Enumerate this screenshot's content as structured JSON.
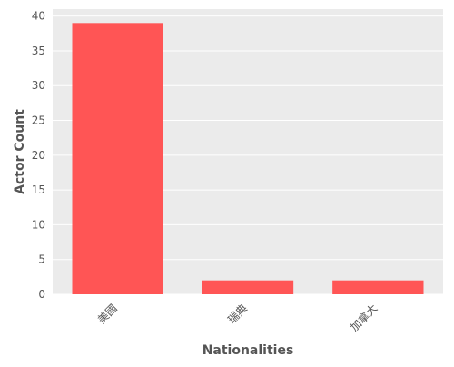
{
  "chart_data": {
    "type": "bar",
    "title": "",
    "xlabel": "Nationalities",
    "ylabel": "Actor Count",
    "categories": [
      "美國",
      "瑞典",
      "加拿大"
    ],
    "values": [
      39,
      2,
      2
    ],
    "ylim": [
      0,
      41
    ],
    "yticks": [
      0,
      5,
      10,
      15,
      20,
      25,
      30,
      35,
      40
    ],
    "grid": true,
    "legend": "none",
    "colors": {
      "bar": "#ff5555",
      "plot_background": "#ebebeb",
      "grid": "#ffffff",
      "text": "#555555"
    }
  }
}
